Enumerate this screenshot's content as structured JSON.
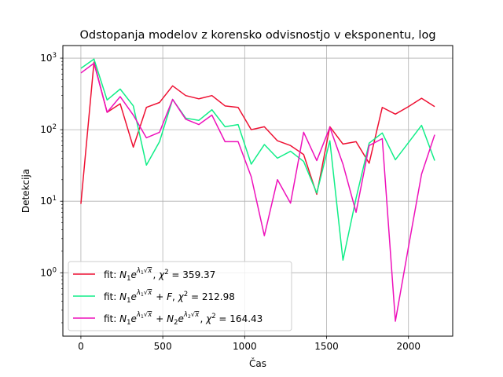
{
  "chart_data": {
    "type": "line",
    "title": "Odstopanja modelov z korensko odvisnostjo v eksponentu, log",
    "xlabel": "Čas",
    "ylabel": "Detekcija",
    "yscale": "log",
    "xlim": [
      -110,
      2270
    ],
    "ylim": [
      0.13,
      1500
    ],
    "grid": true,
    "legend_placement": "lower-left",
    "x_ticks": [
      0,
      500,
      1000,
      1500,
      2000
    ],
    "x_tick_labels": [
      "0",
      "500",
      "1000",
      "1500",
      "2000"
    ],
    "y_ticks": [
      1,
      10,
      100,
      1000
    ],
    "y_tick_labels": [
      {
        "base": "10",
        "exp": "0"
      },
      {
        "base": "10",
        "exp": "1"
      },
      {
        "base": "10",
        "exp": "2"
      },
      {
        "base": "10",
        "exp": "3"
      }
    ],
    "x": [
      0,
      80,
      160,
      240,
      320,
      400,
      480,
      560,
      640,
      720,
      800,
      880,
      960,
      1040,
      1120,
      1200,
      1280,
      1360,
      1440,
      1520,
      1600,
      1680,
      1760,
      1840,
      1920,
      2000,
      2080,
      2160
    ],
    "series": [
      {
        "name": "fit: N1e^(λ1√x), χ² = 359.37",
        "color": "#ee1133",
        "legend": {
          "pre": "fit: ",
          "terms": [
            {
              "base": "N",
              "sub": "1",
              "lam": "1"
            }
          ],
          "suffix": ", ",
          "chi": "359.37"
        },
        "values": [
          9.2,
          880,
          175,
          230,
          57,
          205,
          240,
          410,
          300,
          270,
          300,
          215,
          205,
          100,
          110,
          70,
          60,
          45,
          12.5,
          110,
          63,
          68,
          34,
          205,
          165,
          210,
          275,
          210
        ]
      },
      {
        "name": "fit: N1e^(λ1√x)+F, χ² = 212.98",
        "color": "#11ee88",
        "legend": {
          "pre": "fit: ",
          "terms": [
            {
              "base": "N",
              "sub": "1",
              "lam": "1"
            }
          ],
          "plusF": true,
          "suffix": ", ",
          "chi": "212.98"
        },
        "values": [
          720,
          970,
          260,
          370,
          215,
          32,
          68,
          265,
          145,
          135,
          190,
          110,
          118,
          33,
          62,
          40,
          50,
          36,
          13,
          70,
          1.5,
          11,
          65,
          90,
          38,
          66,
          115,
          37
        ]
      },
      {
        "name": "fit: N1e^(λ1√x)+N2e^(λ2√x), χ² = 164.43",
        "color": "#ee11bb",
        "legend": {
          "pre": "fit: ",
          "terms": [
            {
              "base": "N",
              "sub": "1",
              "lam": "1"
            },
            {
              "base": "N",
              "sub": "2",
              "lam": "2"
            }
          ],
          "suffix": ", ",
          "chi": "164.43"
        },
        "values": [
          620,
          850,
          175,
          290,
          160,
          77,
          92,
          265,
          140,
          118,
          160,
          68,
          68,
          22,
          3.3,
          20,
          9.4,
          92,
          37,
          108,
          33,
          7,
          60,
          75,
          0.21,
          2.3,
          24,
          85
        ]
      }
    ]
  }
}
